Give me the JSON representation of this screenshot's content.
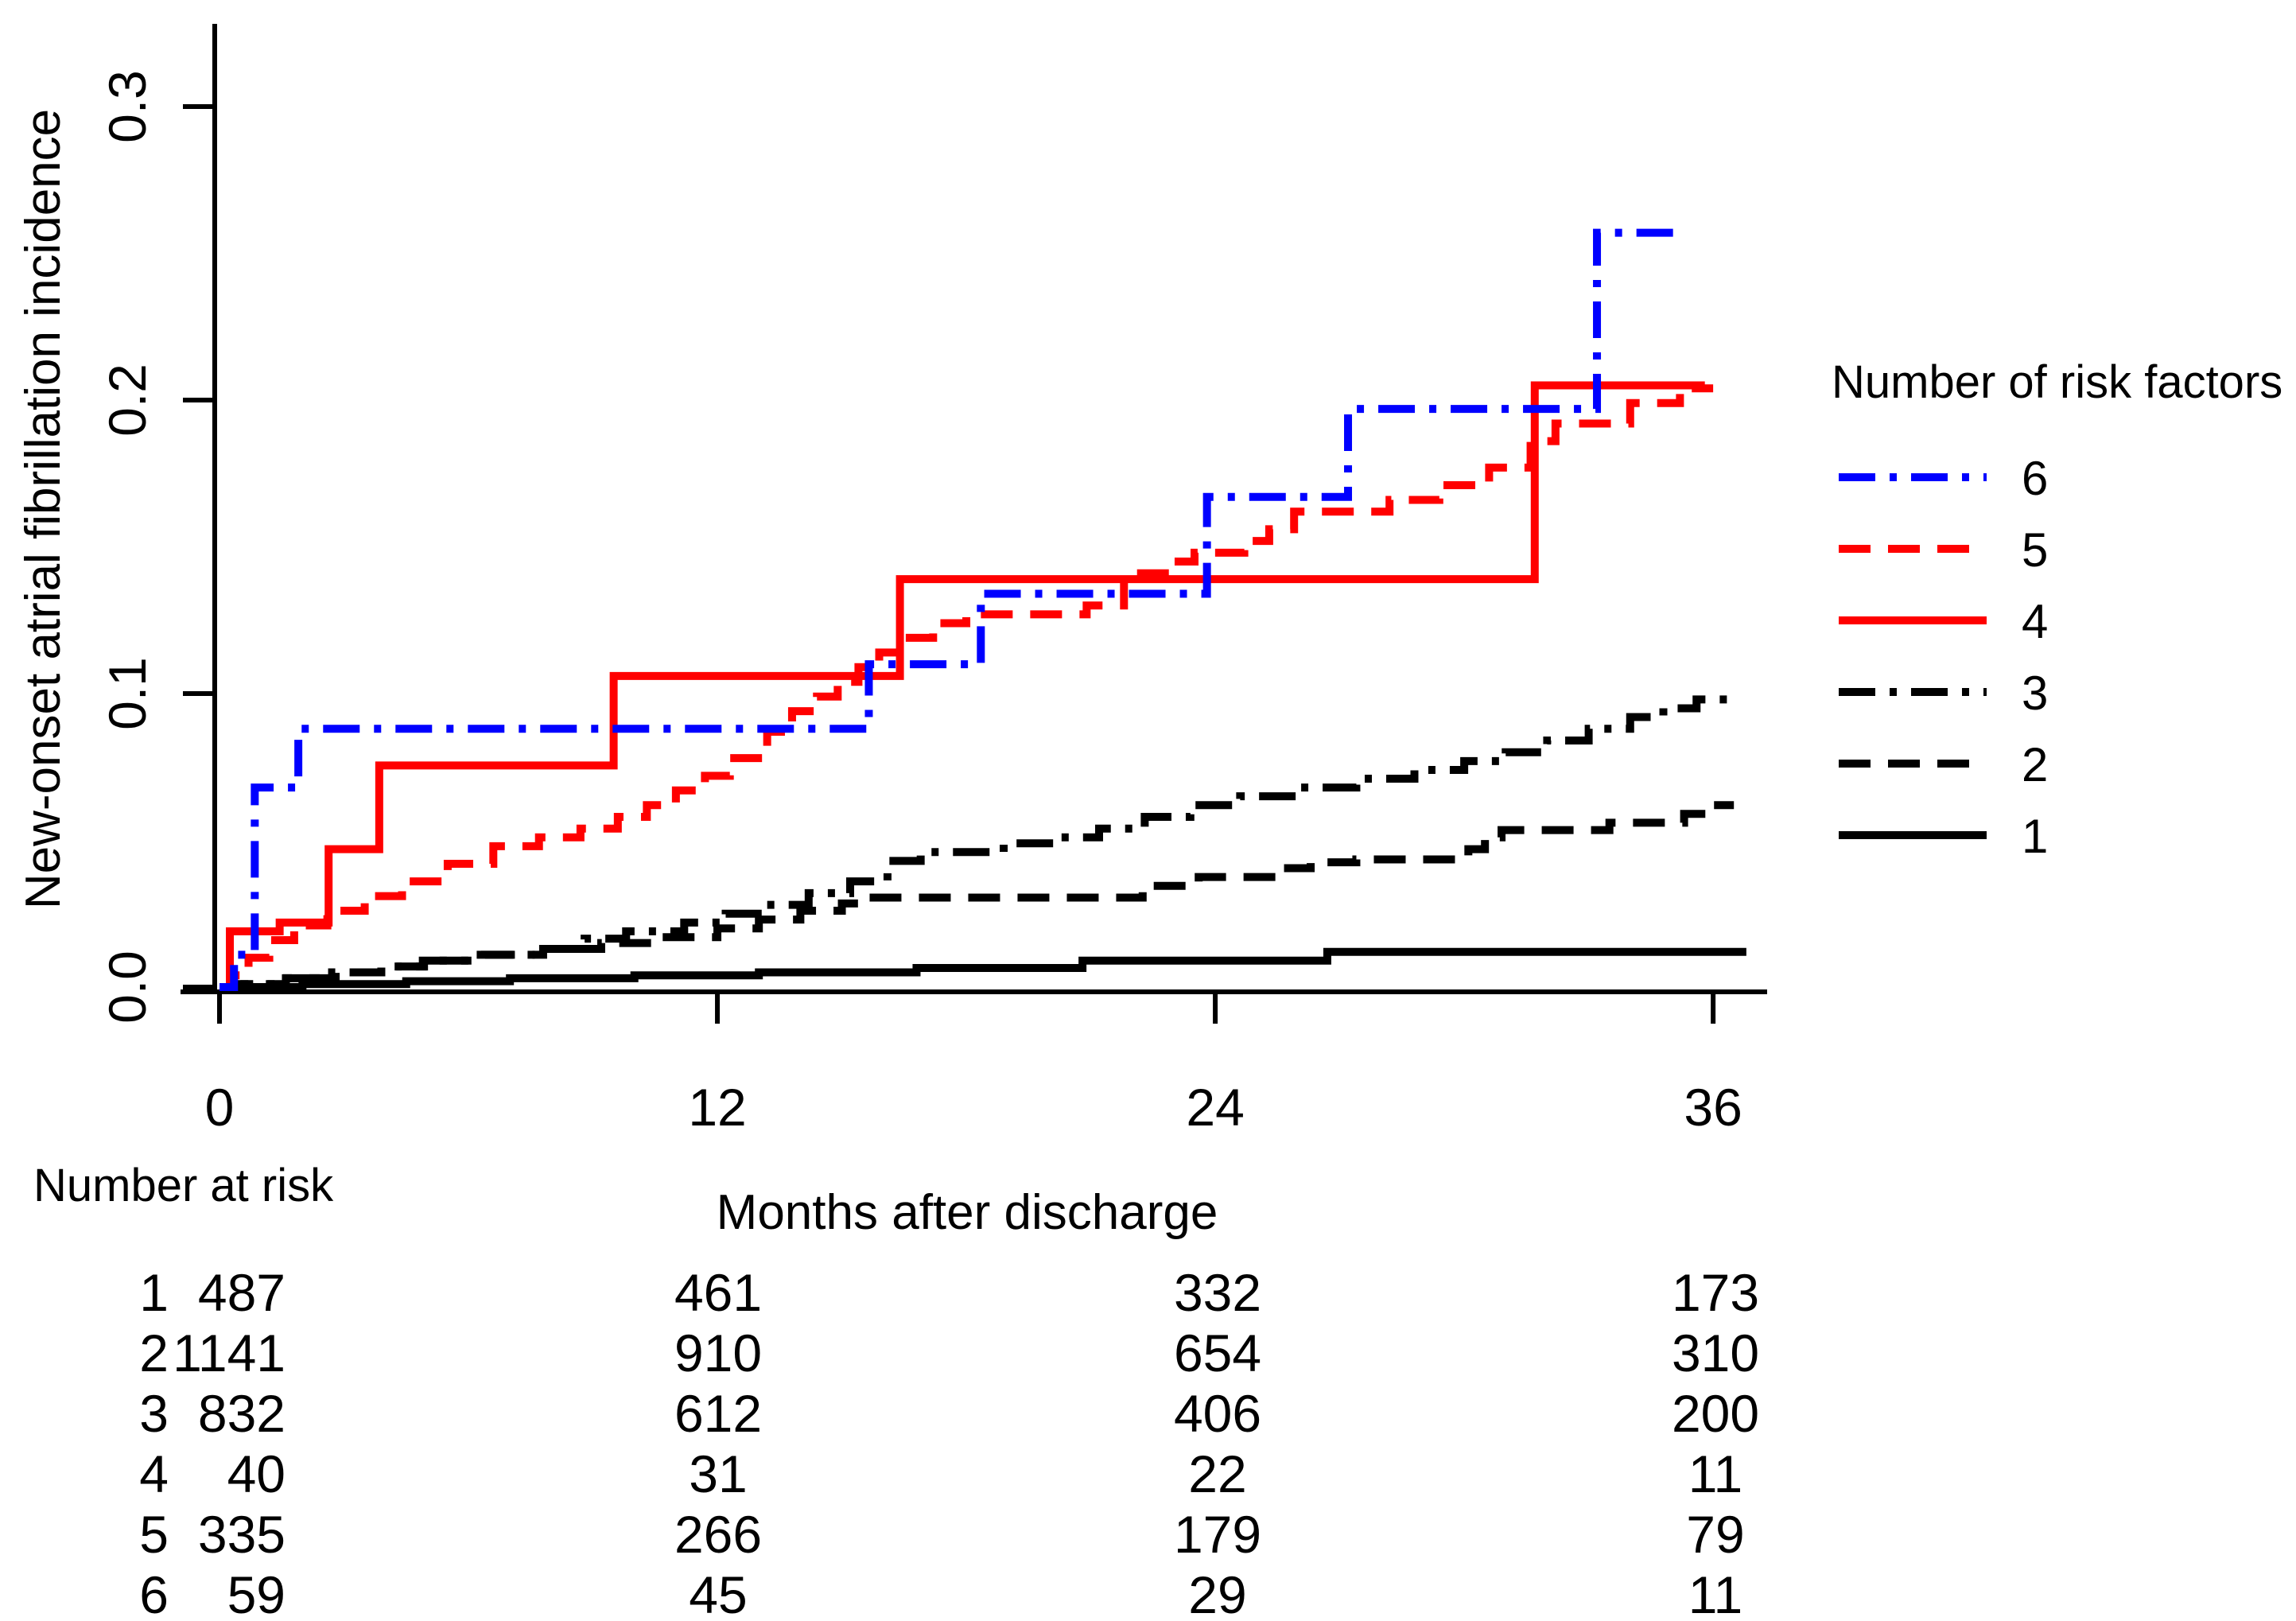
{
  "figure": {
    "y_axis_title": "New-onset atrial fibrillation incidence",
    "x_axis_title": "Months after discharge",
    "legend_title": "Number of risk factors",
    "at_risk_header": "Number at risk",
    "background_color": "#ffffff"
  },
  "chart_data": {
    "type": "line",
    "variant": "kaplan_meier_cumulative_incidence_step",
    "title": "",
    "xlabel": "Months after discharge",
    "ylabel": "New-onset atrial fibrillation incidence",
    "xlim": [
      0,
      37.3
    ],
    "ylim": [
      0,
      0.3
    ],
    "grid": false,
    "legend_position": "right",
    "legend_title": "Number of risk factors",
    "x_ticks": [
      {
        "value": 0,
        "label": "0"
      },
      {
        "value": 12,
        "label": "12"
      },
      {
        "value": 24,
        "label": "24"
      },
      {
        "value": 36,
        "label": "36"
      }
    ],
    "y_ticks": [
      {
        "value": 0.0,
        "label": "0.0"
      },
      {
        "value": 0.1,
        "label": "0.1"
      },
      {
        "value": 0.2,
        "label": "0.2"
      },
      {
        "value": 0.3,
        "label": "0.3"
      }
    ],
    "series": [
      {
        "name": "6",
        "color": "#0000ff",
        "line_style": "dashdot",
        "end_month": 35.35,
        "steps": [
          [
            0.35,
            0.011
          ],
          [
            0.85,
            0.068
          ],
          [
            1.9,
            0.088
          ],
          [
            15.65,
            0.11
          ],
          [
            18.35,
            0.134
          ],
          [
            23.8,
            0.167
          ],
          [
            27.2,
            0.197
          ],
          [
            33.2,
            0.257
          ]
        ]
      },
      {
        "name": "5",
        "color": "#ff0000",
        "line_style": "dashed",
        "end_month": 36.0,
        "steps": [
          [
            0.3,
            0.004
          ],
          [
            0.7,
            0.01
          ],
          [
            1.2,
            0.016
          ],
          [
            1.8,
            0.021
          ],
          [
            2.6,
            0.026
          ],
          [
            3.5,
            0.031
          ],
          [
            4.4,
            0.036
          ],
          [
            5.5,
            0.042
          ],
          [
            6.6,
            0.048
          ],
          [
            7.7,
            0.051
          ],
          [
            8.7,
            0.054
          ],
          [
            9.6,
            0.058
          ],
          [
            10.3,
            0.062
          ],
          [
            11.0,
            0.067
          ],
          [
            11.7,
            0.072
          ],
          [
            12.3,
            0.078
          ],
          [
            13.2,
            0.087
          ],
          [
            13.8,
            0.094
          ],
          [
            14.4,
            0.099
          ],
          [
            14.9,
            0.104
          ],
          [
            15.4,
            0.109
          ],
          [
            15.9,
            0.114
          ],
          [
            16.5,
            0.119
          ],
          [
            17.2,
            0.124
          ],
          [
            18.0,
            0.127
          ],
          [
            20.9,
            0.13
          ],
          [
            21.8,
            0.141
          ],
          [
            22.9,
            0.145
          ],
          [
            23.5,
            0.148
          ],
          [
            24.7,
            0.152
          ],
          [
            25.3,
            0.156
          ],
          [
            25.9,
            0.162
          ],
          [
            28.2,
            0.166
          ],
          [
            29.4,
            0.171
          ],
          [
            30.6,
            0.177
          ],
          [
            31.6,
            0.186
          ],
          [
            32.2,
            0.192
          ],
          [
            34.0,
            0.199
          ],
          [
            35.2,
            0.204
          ]
        ]
      },
      {
        "name": "4",
        "color": "#ff0000",
        "line_style": "solid",
        "end_month": 35.8,
        "steps": [
          [
            0.25,
            0.019
          ],
          [
            1.45,
            0.022
          ],
          [
            2.63,
            0.047
          ],
          [
            3.85,
            0.0755
          ],
          [
            9.5,
            0.106
          ],
          [
            16.4,
            0.139
          ],
          [
            31.7,
            0.205
          ]
        ]
      },
      {
        "name": "3",
        "color": "#000000",
        "line_style": "dashdot",
        "end_month": 36.6,
        "steps": [
          [
            0.5,
            0.001
          ],
          [
            1.5,
            0.003
          ],
          [
            2.5,
            0.005
          ],
          [
            3.9,
            0.007
          ],
          [
            4.9,
            0.009
          ],
          [
            6.0,
            0.011
          ],
          [
            7.6,
            0.013
          ],
          [
            8.8,
            0.0165
          ],
          [
            9.8,
            0.019
          ],
          [
            11.2,
            0.022
          ],
          [
            12.2,
            0.025
          ],
          [
            13.2,
            0.028
          ],
          [
            14.2,
            0.032
          ],
          [
            15.2,
            0.036
          ],
          [
            16.1,
            0.043
          ],
          [
            16.9,
            0.046
          ],
          [
            18.9,
            0.049
          ],
          [
            20.2,
            0.051
          ],
          [
            21.2,
            0.054
          ],
          [
            22.3,
            0.058
          ],
          [
            23.4,
            0.062
          ],
          [
            24.6,
            0.065
          ],
          [
            26.0,
            0.068
          ],
          [
            27.4,
            0.071
          ],
          [
            28.8,
            0.074
          ],
          [
            30.0,
            0.077
          ],
          [
            31.0,
            0.08
          ],
          [
            32.0,
            0.084
          ],
          [
            33.0,
            0.088
          ],
          [
            34.0,
            0.092
          ],
          [
            34.8,
            0.095
          ],
          [
            35.6,
            0.098
          ]
        ]
      },
      {
        "name": "2",
        "color": "#000000",
        "line_style": "dashed",
        "end_month": 36.5,
        "steps": [
          [
            0.6,
            0.001
          ],
          [
            1.6,
            0.003
          ],
          [
            2.8,
            0.005
          ],
          [
            4.0,
            0.007
          ],
          [
            5.2,
            0.009
          ],
          [
            6.4,
            0.011
          ],
          [
            7.8,
            0.013
          ],
          [
            9.2,
            0.015
          ],
          [
            10.6,
            0.017
          ],
          [
            12.0,
            0.02
          ],
          [
            13.0,
            0.023
          ],
          [
            14.0,
            0.026
          ],
          [
            15.0,
            0.0285
          ],
          [
            15.6,
            0.0305
          ],
          [
            22.25,
            0.0345
          ],
          [
            23.6,
            0.0375
          ],
          [
            25.6,
            0.0405
          ],
          [
            26.3,
            0.0425
          ],
          [
            27.4,
            0.0435
          ],
          [
            30.1,
            0.047
          ],
          [
            30.5,
            0.051
          ],
          [
            30.9,
            0.0535
          ],
          [
            33.5,
            0.056
          ],
          [
            35.3,
            0.059
          ],
          [
            36.0,
            0.062
          ]
        ]
      },
      {
        "name": "1",
        "color": "#000000",
        "line_style": "solid",
        "end_month": 36.8,
        "steps": [
          [
            2.0,
            0.001
          ],
          [
            4.5,
            0.002
          ],
          [
            7.0,
            0.003
          ],
          [
            10.0,
            0.004
          ],
          [
            13.0,
            0.005
          ],
          [
            16.8,
            0.0065
          ],
          [
            20.8,
            0.009
          ],
          [
            26.7,
            0.012
          ]
        ]
      }
    ],
    "at_risk_table": {
      "header": "Number at risk",
      "time_points": [
        0,
        12,
        24,
        36
      ],
      "rows": [
        {
          "label": "1",
          "color": "#000000",
          "values": [
            "487",
            "461",
            "332",
            "173"
          ]
        },
        {
          "label": "2",
          "color": "#000000",
          "values": [
            "1141",
            "910",
            "654",
            "310"
          ]
        },
        {
          "label": "3",
          "color": "#000000",
          "values": [
            "832",
            "612",
            "406",
            "200"
          ]
        },
        {
          "label": "4",
          "color": "#ff0000",
          "values": [
            "40",
            "31",
            "22",
            "11"
          ]
        },
        {
          "label": "5",
          "color": "#ff0000",
          "values": [
            "335",
            "266",
            "179",
            "79"
          ]
        },
        {
          "label": "6",
          "color": "#0000ff",
          "values": [
            "59",
            "45",
            "29",
            "11"
          ]
        }
      ]
    }
  }
}
